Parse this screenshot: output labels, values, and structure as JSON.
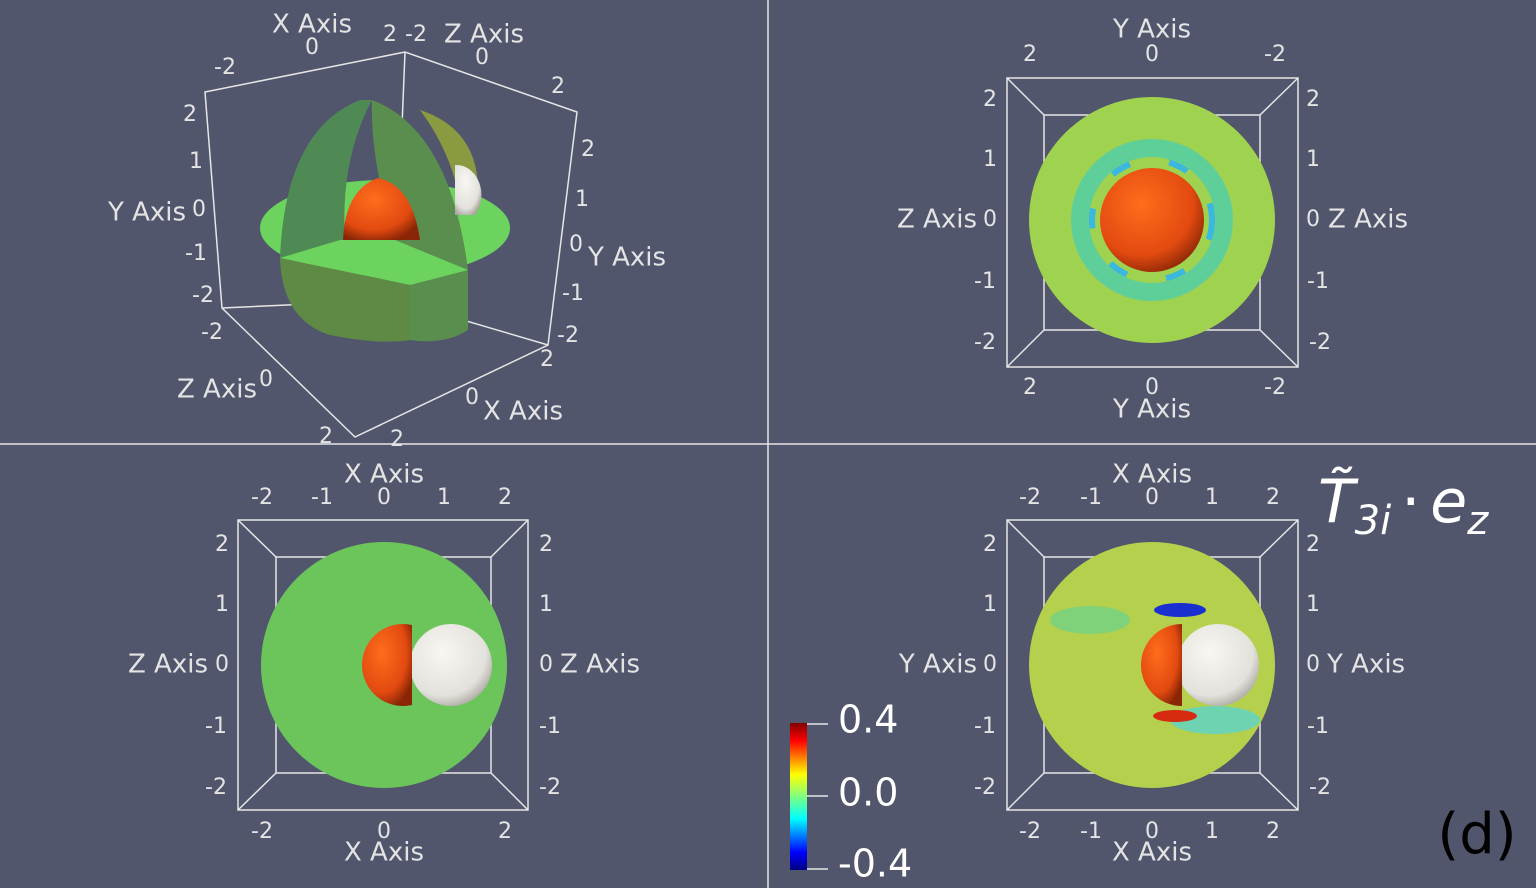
{
  "panels": [
    {
      "axis_titles": [
        "X Axis",
        "Z Axis",
        "Y Axis",
        "X Axis",
        "Y Axis",
        "Z Axis"
      ],
      "tick_labels": [
        "0",
        "-2",
        "2",
        "-2",
        "0",
        "2",
        "2",
        "1",
        "0",
        "-1",
        "-2",
        "2",
        "0",
        "2",
        "1",
        "0",
        "-1",
        "-2",
        "-2",
        "0",
        "2",
        "2"
      ]
    },
    {
      "axis_titles": [
        "Y Axis",
        "Z Axis",
        "Z Axis",
        "Y Axis"
      ],
      "tick_labels": [
        "2",
        "0",
        "-2",
        "2",
        "1",
        "0",
        "-1",
        "-2",
        "2",
        "1",
        "0",
        "-1",
        "-2",
        "2",
        "0",
        "-2"
      ]
    },
    {
      "axis_titles": [
        "X Axis",
        "Z Axis",
        "Z Axis",
        "X Axis"
      ],
      "tick_labels": [
        "-2",
        "-1",
        "0",
        "1",
        "2",
        "2",
        "1",
        "0",
        "-1",
        "-2",
        "2",
        "1",
        "0",
        "-1",
        "-2",
        "-2",
        "0",
        "2"
      ]
    },
    {
      "axis_titles": [
        "X Axis",
        "Y Axis",
        "Y Axis",
        "X Axis"
      ],
      "tick_labels": [
        "-2",
        "-1",
        "0",
        "1",
        "2",
        "2",
        "1",
        "0",
        "-1",
        "-2",
        "2",
        "1",
        "0",
        "-1",
        "-2",
        "-2",
        "-1",
        "0",
        "1",
        "2"
      ]
    }
  ],
  "colorbar": {
    "tick_labels": [
      "0.4",
      "0.0",
      "-0.4"
    ]
  },
  "title": {
    "symbol": "T̃",
    "index": "3i",
    "operator": "·",
    "vector": "e",
    "vector_index": "z"
  },
  "panel_label": "(d)"
}
